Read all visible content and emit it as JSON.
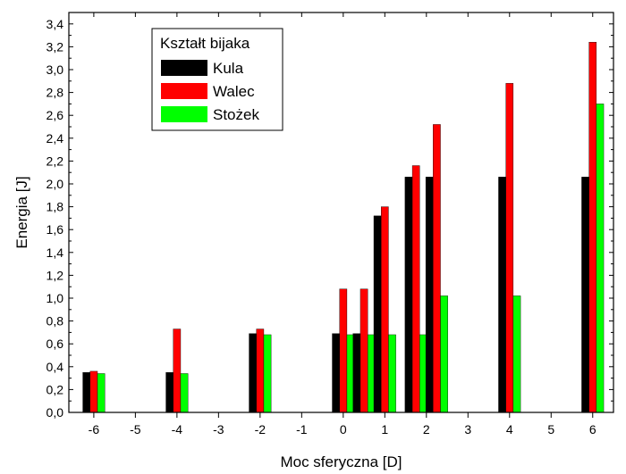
{
  "chart_data": {
    "type": "bar",
    "xlabel": "Moc sferyczna [D]",
    "ylabel": "Energia [J]",
    "xlim": [
      -6.6,
      6.5
    ],
    "ylim": [
      0,
      3.5
    ],
    "x_ticks": [
      -6,
      -5,
      -4,
      -3,
      -2,
      -1,
      0,
      1,
      2,
      3,
      4,
      5,
      6
    ],
    "x_tick_labels": [
      "-6",
      "-5",
      "-4",
      "-3",
      "-2",
      "-1",
      "0",
      "1",
      "2",
      "3",
      "4",
      "5",
      "6"
    ],
    "y_ticks": [
      0,
      0.2,
      0.4,
      0.6,
      0.8,
      1.0,
      1.2,
      1.4,
      1.6,
      1.8,
      2.0,
      2.2,
      2.4,
      2.6,
      2.8,
      3.0,
      3.2,
      3.4
    ],
    "y_tick_labels": [
      "0,0",
      "0,2",
      "0,4",
      "0,6",
      "0,8",
      "1,0",
      "1,2",
      "1,4",
      "1,6",
      "1,8",
      "2,0",
      "2,2",
      "2,4",
      "2,6",
      "2,8",
      "3,0",
      "3,2",
      "3,4"
    ],
    "groups": [
      -6,
      -4,
      -2,
      0,
      0.5,
      1,
      1.75,
      2.25,
      4,
      6
    ],
    "series": [
      {
        "name": "Kula",
        "color": "#000000",
        "values": [
          0.35,
          0.35,
          0.69,
          0.69,
          0.69,
          1.72,
          2.06,
          2.06,
          2.06,
          2.06
        ]
      },
      {
        "name": "Walec",
        "color": "#ff0000",
        "values": [
          0.36,
          0.73,
          0.73,
          1.08,
          1.08,
          1.8,
          2.16,
          2.52,
          2.88,
          3.24
        ]
      },
      {
        "name": "Stożek",
        "color": "#00ff00",
        "values": [
          0.34,
          0.34,
          0.68,
          0.68,
          0.68,
          0.68,
          0.68,
          1.02,
          1.02,
          2.7
        ]
      }
    ],
    "legend": {
      "title": "Kształt bijaka",
      "placement": "top-left"
    },
    "grid": false
  }
}
